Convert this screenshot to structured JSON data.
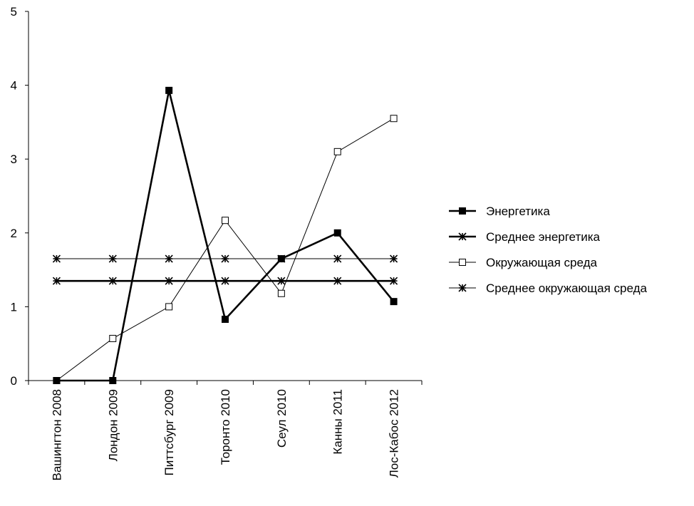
{
  "chart_data": {
    "type": "line",
    "categories": [
      "Вашингтон 2008",
      "Лондон 2009",
      "Питтсбург 2009",
      "Торонто 2010",
      "Сеул 2010",
      "Канны 2011",
      "Лос-Кабос 2012"
    ],
    "ylim": [
      0,
      5
    ],
    "yticks": [
      "0",
      "1",
      "2",
      "3",
      "4",
      "5"
    ],
    "legend_position": "right",
    "grid": false,
    "series": [
      {
        "name": "Энергетика",
        "marker": "filled-square",
        "line": "thick",
        "color": "#000000",
        "values": [
          0,
          0,
          3.93,
          0.83,
          1.65,
          2.0,
          1.07
        ]
      },
      {
        "name": "Среднее энергетика",
        "marker": "asterisk",
        "line": "thick",
        "color": "#000000",
        "values": [
          1.35,
          1.35,
          1.35,
          1.35,
          1.35,
          1.35,
          1.35
        ]
      },
      {
        "name": "Окружающая среда",
        "marker": "open-square",
        "line": "thin",
        "color": "#000000",
        "values": [
          0,
          0.57,
          1.0,
          2.17,
          1.18,
          3.1,
          3.55
        ]
      },
      {
        "name": "Среднее окружающая среда",
        "marker": "asterisk",
        "line": "thin",
        "color": "#000000",
        "values": [
          1.65,
          1.65,
          1.65,
          1.65,
          1.65,
          1.65,
          1.65
        ]
      }
    ]
  }
}
